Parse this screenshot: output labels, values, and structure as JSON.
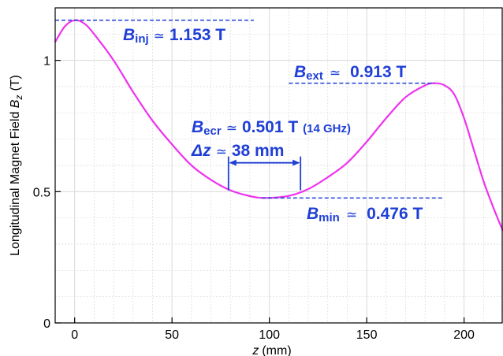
{
  "chart_data": {
    "type": "line",
    "xlabel": {
      "symbol": "z",
      "unit": "(mm)"
    },
    "ylabel": {
      "text": "Longitudinal Magnet Field ",
      "symbol": "B",
      "subscript": "z",
      "unit": "(T)"
    },
    "xlim": [
      -10,
      220
    ],
    "ylim": [
      0,
      1.2
    ],
    "x_ticks": [
      0,
      50,
      100,
      150,
      200
    ],
    "x_tick_labels": [
      "0",
      "50",
      "100",
      "150",
      "200"
    ],
    "y_ticks": [
      0,
      0.5,
      1
    ],
    "y_tick_labels": [
      "0",
      "0.5",
      "1"
    ],
    "grid": true,
    "colors": {
      "curve": "#ee33ee",
      "annotation": "#1f3fd6",
      "grid": "#d9d9d9",
      "axis": "#000000"
    },
    "series": [
      {
        "x": [
          -10,
          -5,
          0,
          5,
          10,
          20,
          30,
          40,
          50,
          60,
          70,
          80,
          90,
          98,
          110,
          120,
          130,
          140,
          150,
          160,
          170,
          180,
          185,
          190,
          195,
          200,
          205,
          210,
          215,
          220
        ],
        "y": [
          1.07,
          1.13,
          1.153,
          1.14,
          1.1,
          1.0,
          0.88,
          0.77,
          0.68,
          0.6,
          0.545,
          0.505,
          0.483,
          0.476,
          0.484,
          0.51,
          0.555,
          0.61,
          0.69,
          0.78,
          0.86,
          0.905,
          0.913,
          0.905,
          0.87,
          0.78,
          0.66,
          0.54,
          0.44,
          0.35
        ]
      }
    ],
    "annotations": {
      "b_inj": {
        "symbol": "B",
        "sub": "inj",
        "approx": "≃",
        "value": "1.153 T",
        "y": 1.153,
        "x_range": [
          -10,
          92
        ]
      },
      "b_ext": {
        "symbol": "B",
        "sub": "ext",
        "approx": "≃",
        "value": "0.913 T",
        "y": 0.913,
        "x_range": [
          110,
          185
        ]
      },
      "b_min": {
        "symbol": "B",
        "sub": "min",
        "approx": "≃",
        "value": "0.476 T",
        "y": 0.476,
        "x_range": [
          96,
          189
        ]
      },
      "b_ecr": {
        "symbol": "B",
        "sub": "ecr",
        "approx": "≃",
        "value": "0.501 T",
        "note": "(14 GHz)"
      },
      "delta_z": {
        "symbol": "Δz",
        "approx": "≃",
        "value": "38 mm",
        "x_range": [
          79,
          116
        ],
        "y_bracket": 0.505,
        "y_arrow": 0.61
      }
    }
  }
}
